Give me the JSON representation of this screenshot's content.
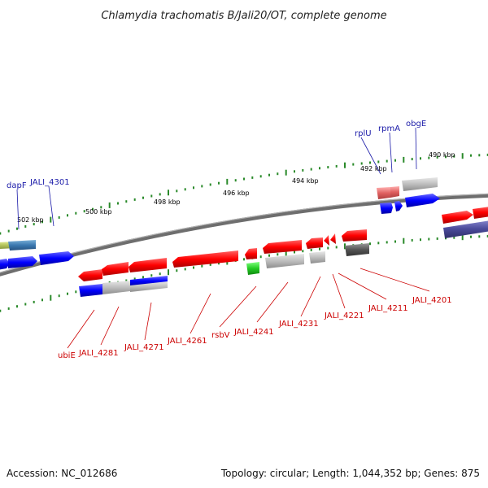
{
  "title": "Chlamydia trachomatis B/Jali20/OT, complete genome",
  "footer": {
    "accession": "Accession: NC_012686",
    "summary": "Topology: circular; Length: 1,044,352 bp; Genes: 875"
  },
  "scale_labels": [
    "490 kbp",
    "492 kbp",
    "494 kbp",
    "496 kbp",
    "498 kbp",
    "500 kbp",
    "502 kbp"
  ],
  "gene_labels_top": [
    "dapF",
    "JALI_4301",
    "rplU",
    "rpmA",
    "obgE"
  ],
  "gene_labels_bottom": [
    "ubiE",
    "JALI_4281",
    "JALI_4271",
    "JALI_4261",
    "rsbV",
    "JALI_4241",
    "JALI_4231",
    "JALI_4221",
    "JALI_4211",
    "JALI_4201"
  ],
  "colors": {
    "backbone": "#808080",
    "forward_cds": "#ff0000",
    "reverse_cds": "#0000ff",
    "tick": "#2a8a2a",
    "top_label": "#1a1aa8",
    "bottom_label": "#cc0000"
  }
}
